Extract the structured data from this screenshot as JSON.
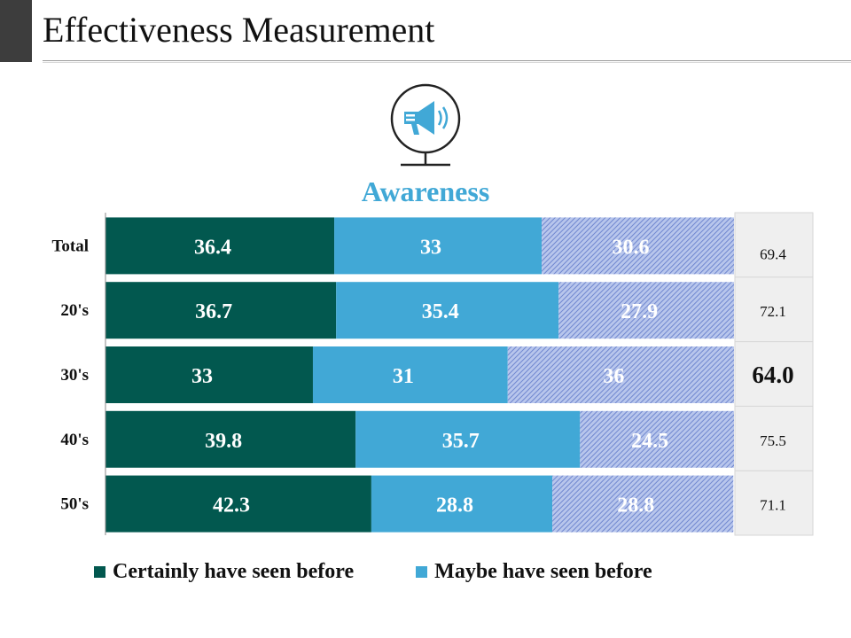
{
  "page": {
    "title": "Effectiveness Measurement",
    "subtitle": "Awareness"
  },
  "icons": {
    "header": "megaphone-icon"
  },
  "colors": {
    "certainly": "#02584f",
    "maybe": "#41a8d6",
    "hatched": "#7f98d8",
    "side_panel": "#efefef",
    "title_block": "#3d3d3d"
  },
  "chart_data": {
    "type": "bar",
    "orientation": "horizontal",
    "stacked": true,
    "categories": [
      "Total",
      "20's",
      "30's",
      "40's",
      "50's"
    ],
    "series": [
      {
        "name": "Certainly have seen before",
        "values": [
          36.4,
          36.7,
          33,
          39.8,
          42.3
        ],
        "labels": [
          "36.4",
          "36.7",
          "33",
          "39.8",
          "42.3"
        ]
      },
      {
        "name": "Maybe have seen before",
        "values": [
          33,
          35.4,
          31,
          35.7,
          28.8
        ],
        "labels": [
          "33",
          "35.4",
          "31",
          "35.7",
          "28.8"
        ]
      },
      {
        "name": "",
        "values": [
          30.6,
          27.9,
          36,
          24.5,
          28.8
        ],
        "labels": [
          "30.6",
          "27.9",
          "36",
          "24.5",
          "28.8"
        ]
      }
    ],
    "side_values": [
      "69.4",
      "72.1",
      "64.0",
      "75.5",
      "71.1"
    ],
    "highlight_index": 2,
    "xlim": [
      0,
      100
    ],
    "title": "Awareness",
    "legend": [
      "Certainly have seen before",
      "Maybe have seen before"
    ],
    "legend_position": "bottom"
  }
}
